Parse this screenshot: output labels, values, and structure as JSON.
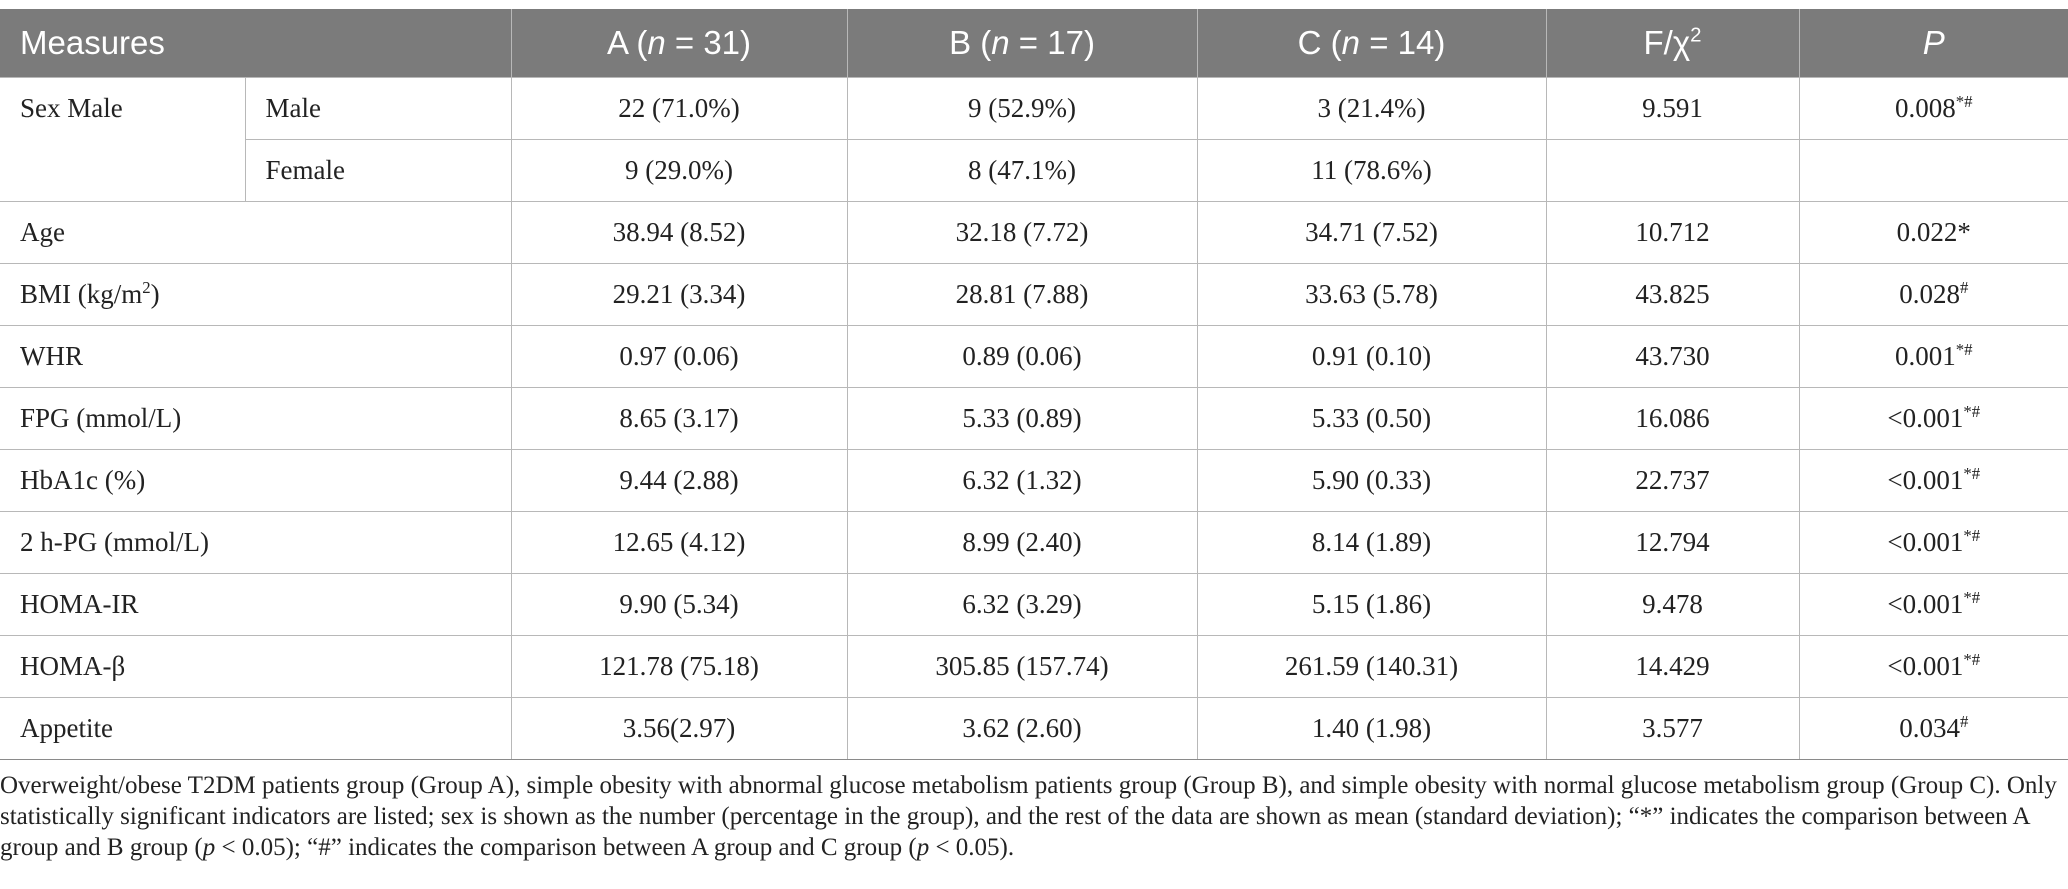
{
  "table": {
    "header": {
      "measures": "Measures",
      "group_a": {
        "prefix": "A (",
        "n": "n",
        "suffix": " = 31)"
      },
      "group_b": {
        "prefix": "B (",
        "n": "n",
        "suffix": " = 17)"
      },
      "group_c": {
        "prefix": "C (",
        "n": "n",
        "suffix": " = 14)"
      },
      "stat": {
        "base": "F/χ",
        "sup": "2"
      },
      "p": "P"
    },
    "sex": {
      "label": "Sex Male",
      "male": {
        "label": "Male",
        "a": "22 (71.0%)",
        "b": "9 (52.9%)",
        "c": "3 (21.4%)",
        "stat": "9.591",
        "p": "0.008",
        "p_sup": "*#"
      },
      "female": {
        "label": "Female",
        "a": "9 (29.0%)",
        "b": "8 (47.1%)",
        "c": "11 (78.6%)",
        "stat": "",
        "p": "",
        "p_sup": ""
      }
    },
    "rows": [
      {
        "label": "Age",
        "label_sup": "",
        "label_tail": "",
        "a": "38.94 (8.52)",
        "b": "32.18 (7.72)",
        "c": "34.71 (7.52)",
        "stat": "10.712",
        "p": "0.022*",
        "p_sup": ""
      },
      {
        "label": "BMI (kg/m",
        "label_sup": "2",
        "label_tail": ")",
        "a": "29.21 (3.34)",
        "b": "28.81 (7.88)",
        "c": "33.63 (5.78)",
        "stat": "43.825",
        "p": "0.028",
        "p_sup": "#"
      },
      {
        "label": "WHR",
        "label_sup": "",
        "label_tail": "",
        "a": "0.97 (0.06)",
        "b": "0.89 (0.06)",
        "c": "0.91 (0.10)",
        "stat": "43.730",
        "p": "0.001",
        "p_sup": "*#"
      },
      {
        "label": "FPG (mmol/L)",
        "label_sup": "",
        "label_tail": "",
        "a": "8.65 (3.17)",
        "b": "5.33 (0.89)",
        "c": "5.33 (0.50)",
        "stat": "16.086",
        "p": "<0.001",
        "p_sup": "*#"
      },
      {
        "label": "HbA1c (%)",
        "label_sup": "",
        "label_tail": "",
        "a": "9.44 (2.88)",
        "b": "6.32 (1.32)",
        "c": "5.90 (0.33)",
        "stat": "22.737",
        "p": "<0.001",
        "p_sup": "*#"
      },
      {
        "label": "2 h-PG (mmol/L)",
        "label_sup": "",
        "label_tail": "",
        "a": "12.65 (4.12)",
        "b": "8.99 (2.40)",
        "c": "8.14 (1.89)",
        "stat": "12.794",
        "p": "<0.001",
        "p_sup": "*#"
      },
      {
        "label": "HOMA-IR",
        "label_sup": "",
        "label_tail": "",
        "a": "9.90 (5.34)",
        "b": "6.32 (3.29)",
        "c": "5.15 (1.86)",
        "stat": "9.478",
        "p": "<0.001",
        "p_sup": "*#"
      },
      {
        "label": "HOMA-β",
        "label_sup": "",
        "label_tail": "",
        "a": "121.78 (75.18)",
        "b": "305.85 (157.74)",
        "c": "261.59 (140.31)",
        "stat": "14.429",
        "p": "<0.001",
        "p_sup": "*#"
      },
      {
        "label": "Appetite",
        "label_sup": "",
        "label_tail": "",
        "a": "3.56(2.97)",
        "b": "3.62 (2.60)",
        "c": "1.40 (1.98)",
        "stat": "3.577",
        "p": "0.034",
        "p_sup": "#"
      }
    ]
  },
  "footnote": {
    "text_1": "Overweight/obese T2DM patients group (Group A), simple obesity with abnormal glucose metabolism patients group (Group B), and simple obesity with normal glucose metabolism group (Group C). Only statistically significant indicators are listed; sex is shown as the number (percentage in the group), and the rest of the data are shown as mean (standard deviation); “*” indicates the comparison between A group and B group (",
    "p_1": "p",
    "text_2": " < 0.05); “#” indicates the comparison between A group and C group (",
    "p_2": "p",
    "text_3": " < 0.05)."
  },
  "colors": {
    "header_bg": "#7b7b7b",
    "header_text": "#ffffff",
    "grid": "#b8b8b8",
    "text": "#222222"
  }
}
